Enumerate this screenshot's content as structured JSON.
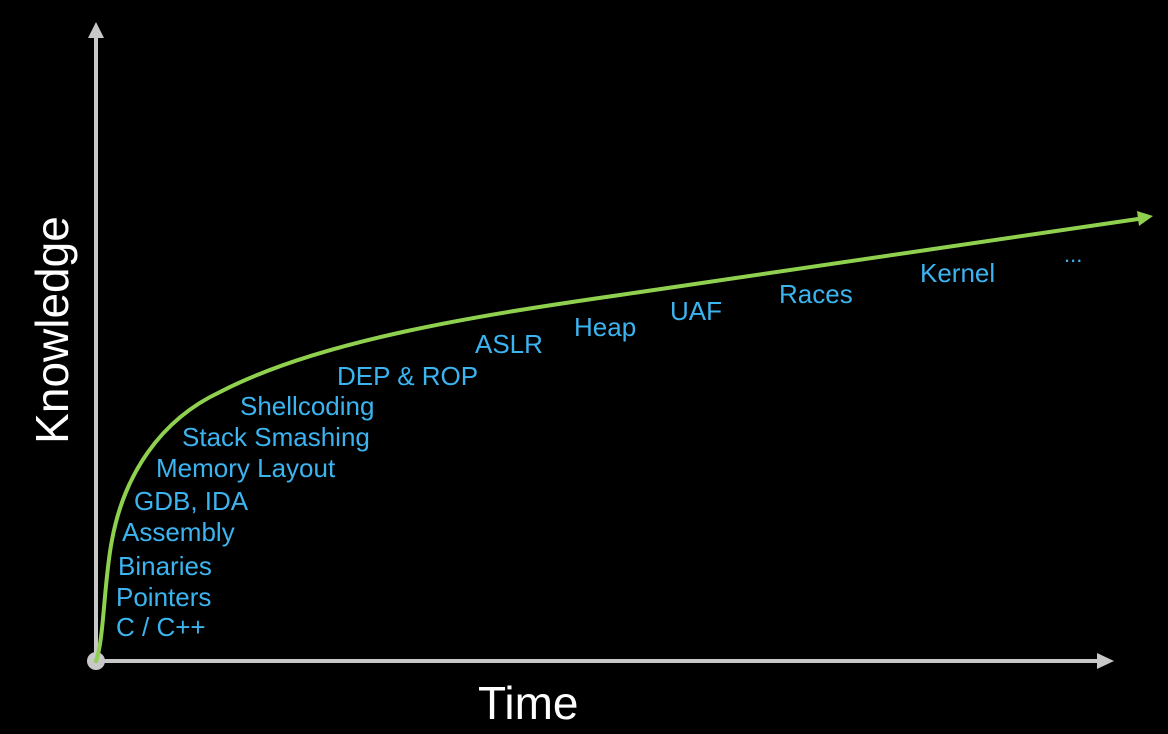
{
  "axes": {
    "x_label": "Time",
    "y_label": "Knowledge"
  },
  "colors": {
    "background": "#000000",
    "axis": "#c8c8c8",
    "curve": "#8fd14f",
    "topic_text": "#3cb4ef",
    "axis_title": "#ffffff"
  },
  "topics": [
    "C / C++",
    "Pointers",
    "Binaries",
    "Assembly",
    "GDB, IDA",
    "Memory Layout",
    "Stack Smashing",
    "Shellcoding",
    "DEP & ROP",
    "ASLR",
    "Heap",
    "UAF",
    "Races",
    "Kernel",
    "..."
  ]
}
